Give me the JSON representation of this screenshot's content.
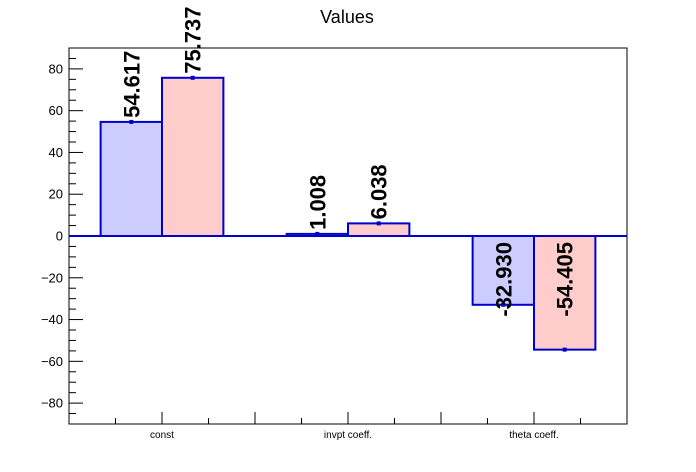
{
  "chart_data": {
    "type": "bar",
    "title": "Values",
    "xlabel": "",
    "ylabel": "",
    "categories": [
      "const",
      "invpt coeff.",
      "theta coeff."
    ],
    "ylim": [
      -90,
      90
    ],
    "y_ticks": [
      -80,
      -60,
      -40,
      -20,
      0,
      20,
      40,
      60,
      80
    ],
    "series": [
      {
        "values": [
          54.617,
          1.008,
          -32.93
        ],
        "labels": [
          "54.617",
          "1.008",
          "-32.930"
        ],
        "color": "#ccccff",
        "stroke": "#0000cc"
      },
      {
        "values": [
          75.737,
          6.038,
          -54.405
        ],
        "labels": [
          "75.737",
          "6.038",
          "-54.405"
        ],
        "color": "#ffcccc",
        "stroke": "#0000cc"
      }
    ],
    "grid": false,
    "legend": "none"
  }
}
